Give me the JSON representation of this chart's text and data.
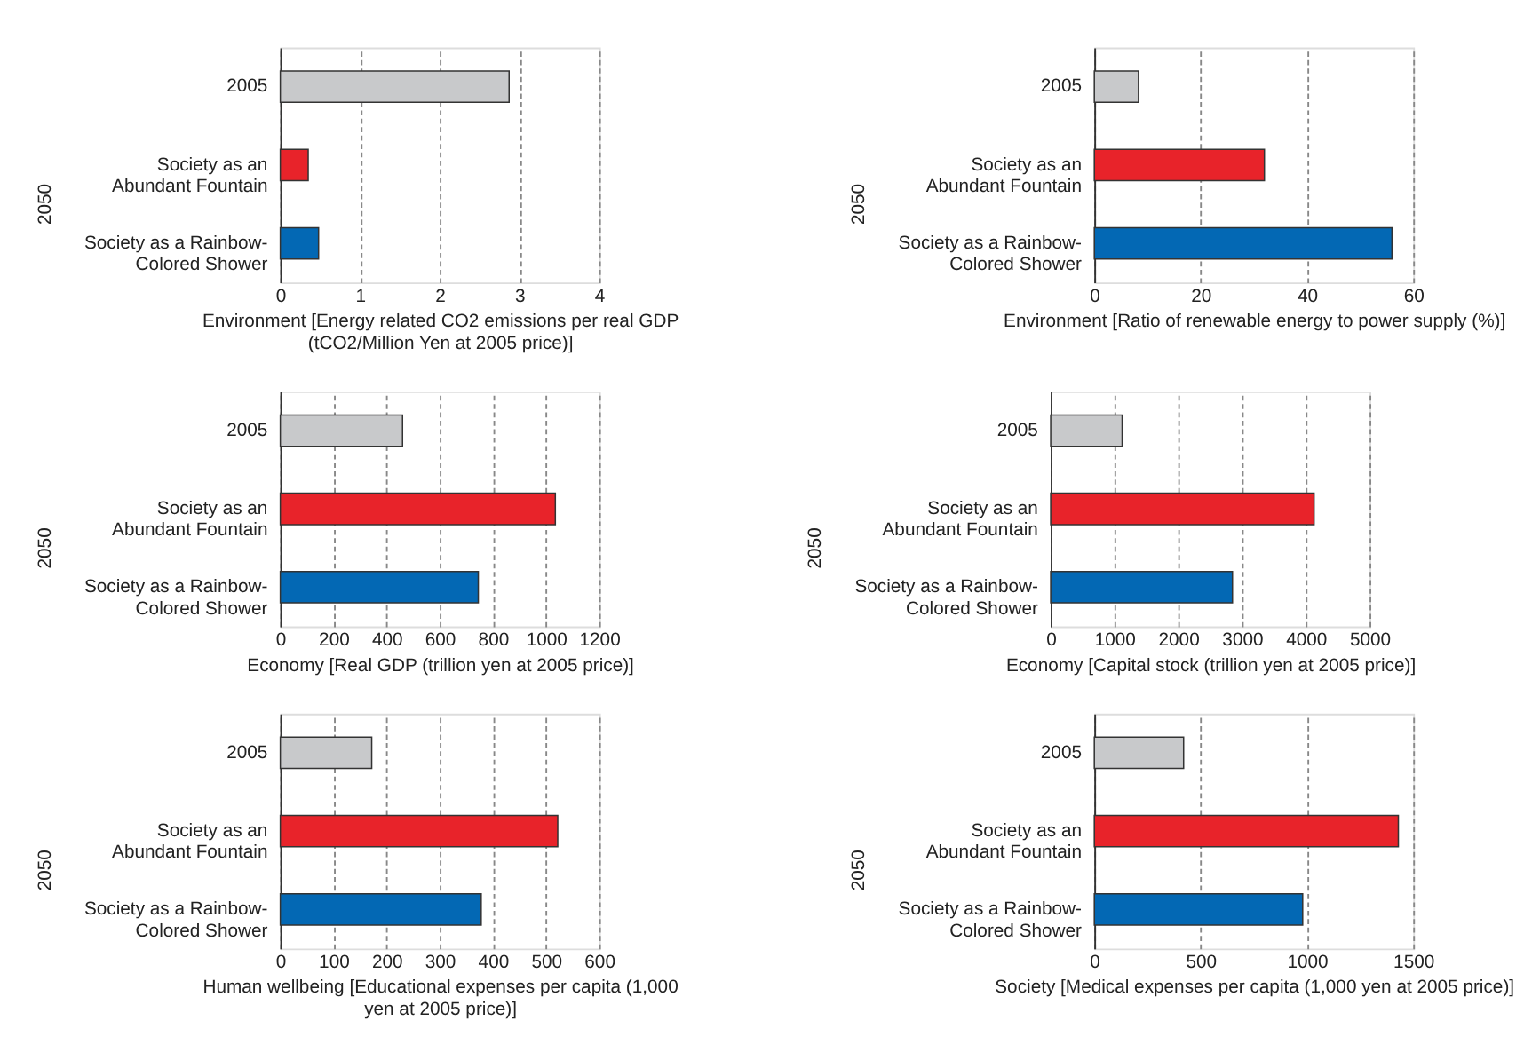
{
  "chart_data": [
    {
      "type": "bar",
      "orientation": "horizontal",
      "xlabel": "Environment [Energy related CO2 emissions per real GDP (tCO2/Million Yen at 2005 price)]",
      "categories": [
        "2005",
        "Society as an Abundant Fountain",
        "Society as a Rainbow-Colored Shower"
      ],
      "values": [
        2.87,
        0.35,
        0.48
      ],
      "colors": [
        "#c8c9cb",
        "#e8232a",
        "#0368b4"
      ],
      "xlim": [
        0,
        4
      ],
      "xticks": [
        0,
        1,
        2,
        3,
        4
      ],
      "grid": "x",
      "annotations": [
        "2050"
      ]
    },
    {
      "type": "bar",
      "orientation": "horizontal",
      "xlabel": "Environment [Ratio of renewable energy to power supply (%)]",
      "categories": [
        "2005",
        "Society as an Abundant Fountain",
        "Society as a Rainbow-Colored Shower"
      ],
      "values": [
        8.3,
        32,
        56
      ],
      "colors": [
        "#c8c9cb",
        "#e8232a",
        "#0368b4"
      ],
      "xlim": [
        0,
        60
      ],
      "xticks": [
        0,
        20,
        40,
        60
      ],
      "grid": "x",
      "annotations": [
        "2050"
      ]
    },
    {
      "type": "bar",
      "orientation": "horizontal",
      "xlabel": "Economy [Real GDP (trillion yen at 2005 price)]",
      "categories": [
        "2005",
        "Society as an Abundant Fountain",
        "Society as a Rainbow-Colored Shower"
      ],
      "values": [
        460,
        1035,
        745
      ],
      "colors": [
        "#c8c9cb",
        "#e8232a",
        "#0368b4"
      ],
      "xlim": [
        0,
        1200
      ],
      "xticks": [
        0,
        200,
        400,
        600,
        800,
        1000,
        1200
      ],
      "grid": "x",
      "annotations": [
        "2050"
      ]
    },
    {
      "type": "bar",
      "orientation": "horizontal",
      "xlabel": "Economy [Capital stock (trillion yen at 2005 price)]",
      "categories": [
        "2005",
        "Society as an Abundant Fountain",
        "Society as a Rainbow-Colored Shower"
      ],
      "values": [
        1120,
        4130,
        2850
      ],
      "colors": [
        "#c8c9cb",
        "#e8232a",
        "#0368b4"
      ],
      "xlim": [
        0,
        5000
      ],
      "xticks": [
        0,
        1000,
        2000,
        3000,
        4000,
        5000
      ],
      "grid": "x",
      "annotations": [
        "2050"
      ]
    },
    {
      "type": "bar",
      "orientation": "horizontal",
      "xlabel": "Human wellbeing [Educational expenses per capita (1,000 yen at 2005 price)]",
      "categories": [
        "2005",
        "Society as an Abundant Fountain",
        "Society as a Rainbow-Colored Shower"
      ],
      "values": [
        172,
        522,
        378
      ],
      "colors": [
        "#c8c9cb",
        "#e8232a",
        "#0368b4"
      ],
      "xlim": [
        0,
        600
      ],
      "xticks": [
        0,
        100,
        200,
        300,
        400,
        500,
        600
      ],
      "grid": "x",
      "annotations": [
        "2050"
      ]
    },
    {
      "type": "bar",
      "orientation": "horizontal",
      "xlabel": "Society [Medical expenses per capita (1,000 yen at 2005 price)]",
      "categories": [
        "2005",
        "Society as an Abundant Fountain",
        "Society as a Rainbow-Colored Shower"
      ],
      "values": [
        420,
        1430,
        980
      ],
      "colors": [
        "#c8c9cb",
        "#e8232a",
        "#0368b4"
      ],
      "xlim": [
        0,
        1500
      ],
      "xticks": [
        0,
        500,
        1000,
        1500
      ],
      "grid": "x",
      "annotations": [
        "2050"
      ]
    }
  ]
}
